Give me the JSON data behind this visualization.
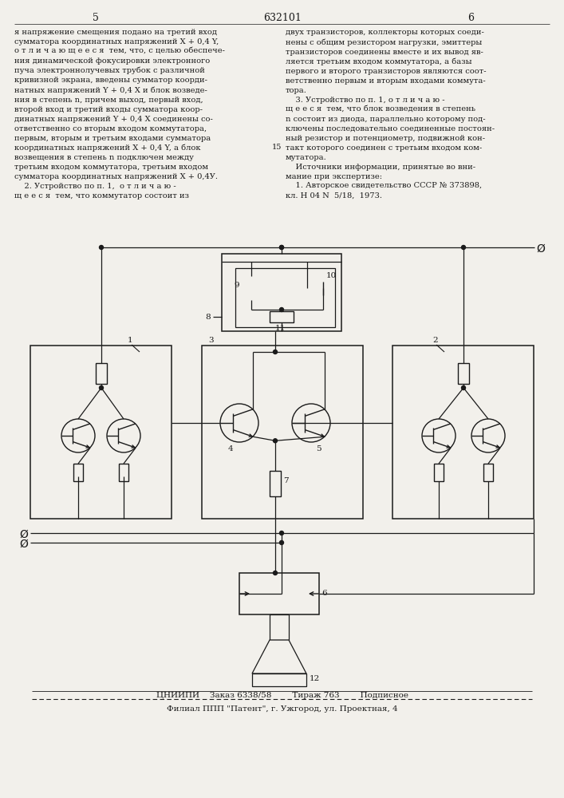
{
  "page_left": "5",
  "page_center": "632101",
  "page_right": "6",
  "left_col_text": "я напряжение смещения подано на третий вход\nсумматора координатных напряжений X + 0,4 Y,\nо т л и ч а ю щ е е с я  тем, что, с целью обеспече-\nния динамической фокусировки электронного\nпуча электроннолучевых трубок с различной\nкривизной экрана, введены сумматор коорди-\nнатных напряжений Y + 0,4 X и блок возведе-\nния в степень n, причем выход, первый вход,\nвторой вход и третий входы сумматора коор-\nдинатных напряжений Y + 0,4 X соединены со-\nответственно со вторым входом коммутатора,\nпервым, вторым и третьим входами сумматора\nкоординатных напряжений X + 0,4 Y, а блок\nвозвещения в степень n подключен между\nтретьим входом коммутатора, третьим входом\nсумматора координатных напряжений X + 0,4У.\n    2. Устройство по п. 1,  о т л и ч а ю -\nщ е е с я  тем, что коммутатор состоит из",
  "right_col_text": "двух транзисторов, коллекторы которых соеди-\nнены с общим резистором нагрузки, эмиттеры\nтранзисторов соединены вместе и их вывод яв-\nляется третьим входом коммутатора, а базы\nпервого и второго транзисторов являются соот-\nветственно первым и вторым входами коммута-\nтора.\n    3. Устройство по п. 1, о т л и ч а ю -\nщ е е с я  тем, что блок возведения в степень\nn состоит из диода, параллельно которому под-\nключены последовательно соединенные постоян-\nный резистор и потенциометр, подвижной кон-\nтакт которого соединен с третьим входом ком-\nмутатора.\n    Источники информации, принятые во вни-\nмание при экспертизе:\n    1. Авторское свидетельство СССР № 373898,\nкл. Н 04 N  5/18,  1973.",
  "line15": "15",
  "footer1": "ЦНИИПИ    Заказ 6338/58        Тираж 763        Подписное",
  "footer2": "Филиал ППП \"Патент\", г. Ужгород, ул. Проектная, 4",
  "bg_color": "#f2f0eb",
  "line_color": "#1a1a1a",
  "text_color": "#1a1a1a"
}
